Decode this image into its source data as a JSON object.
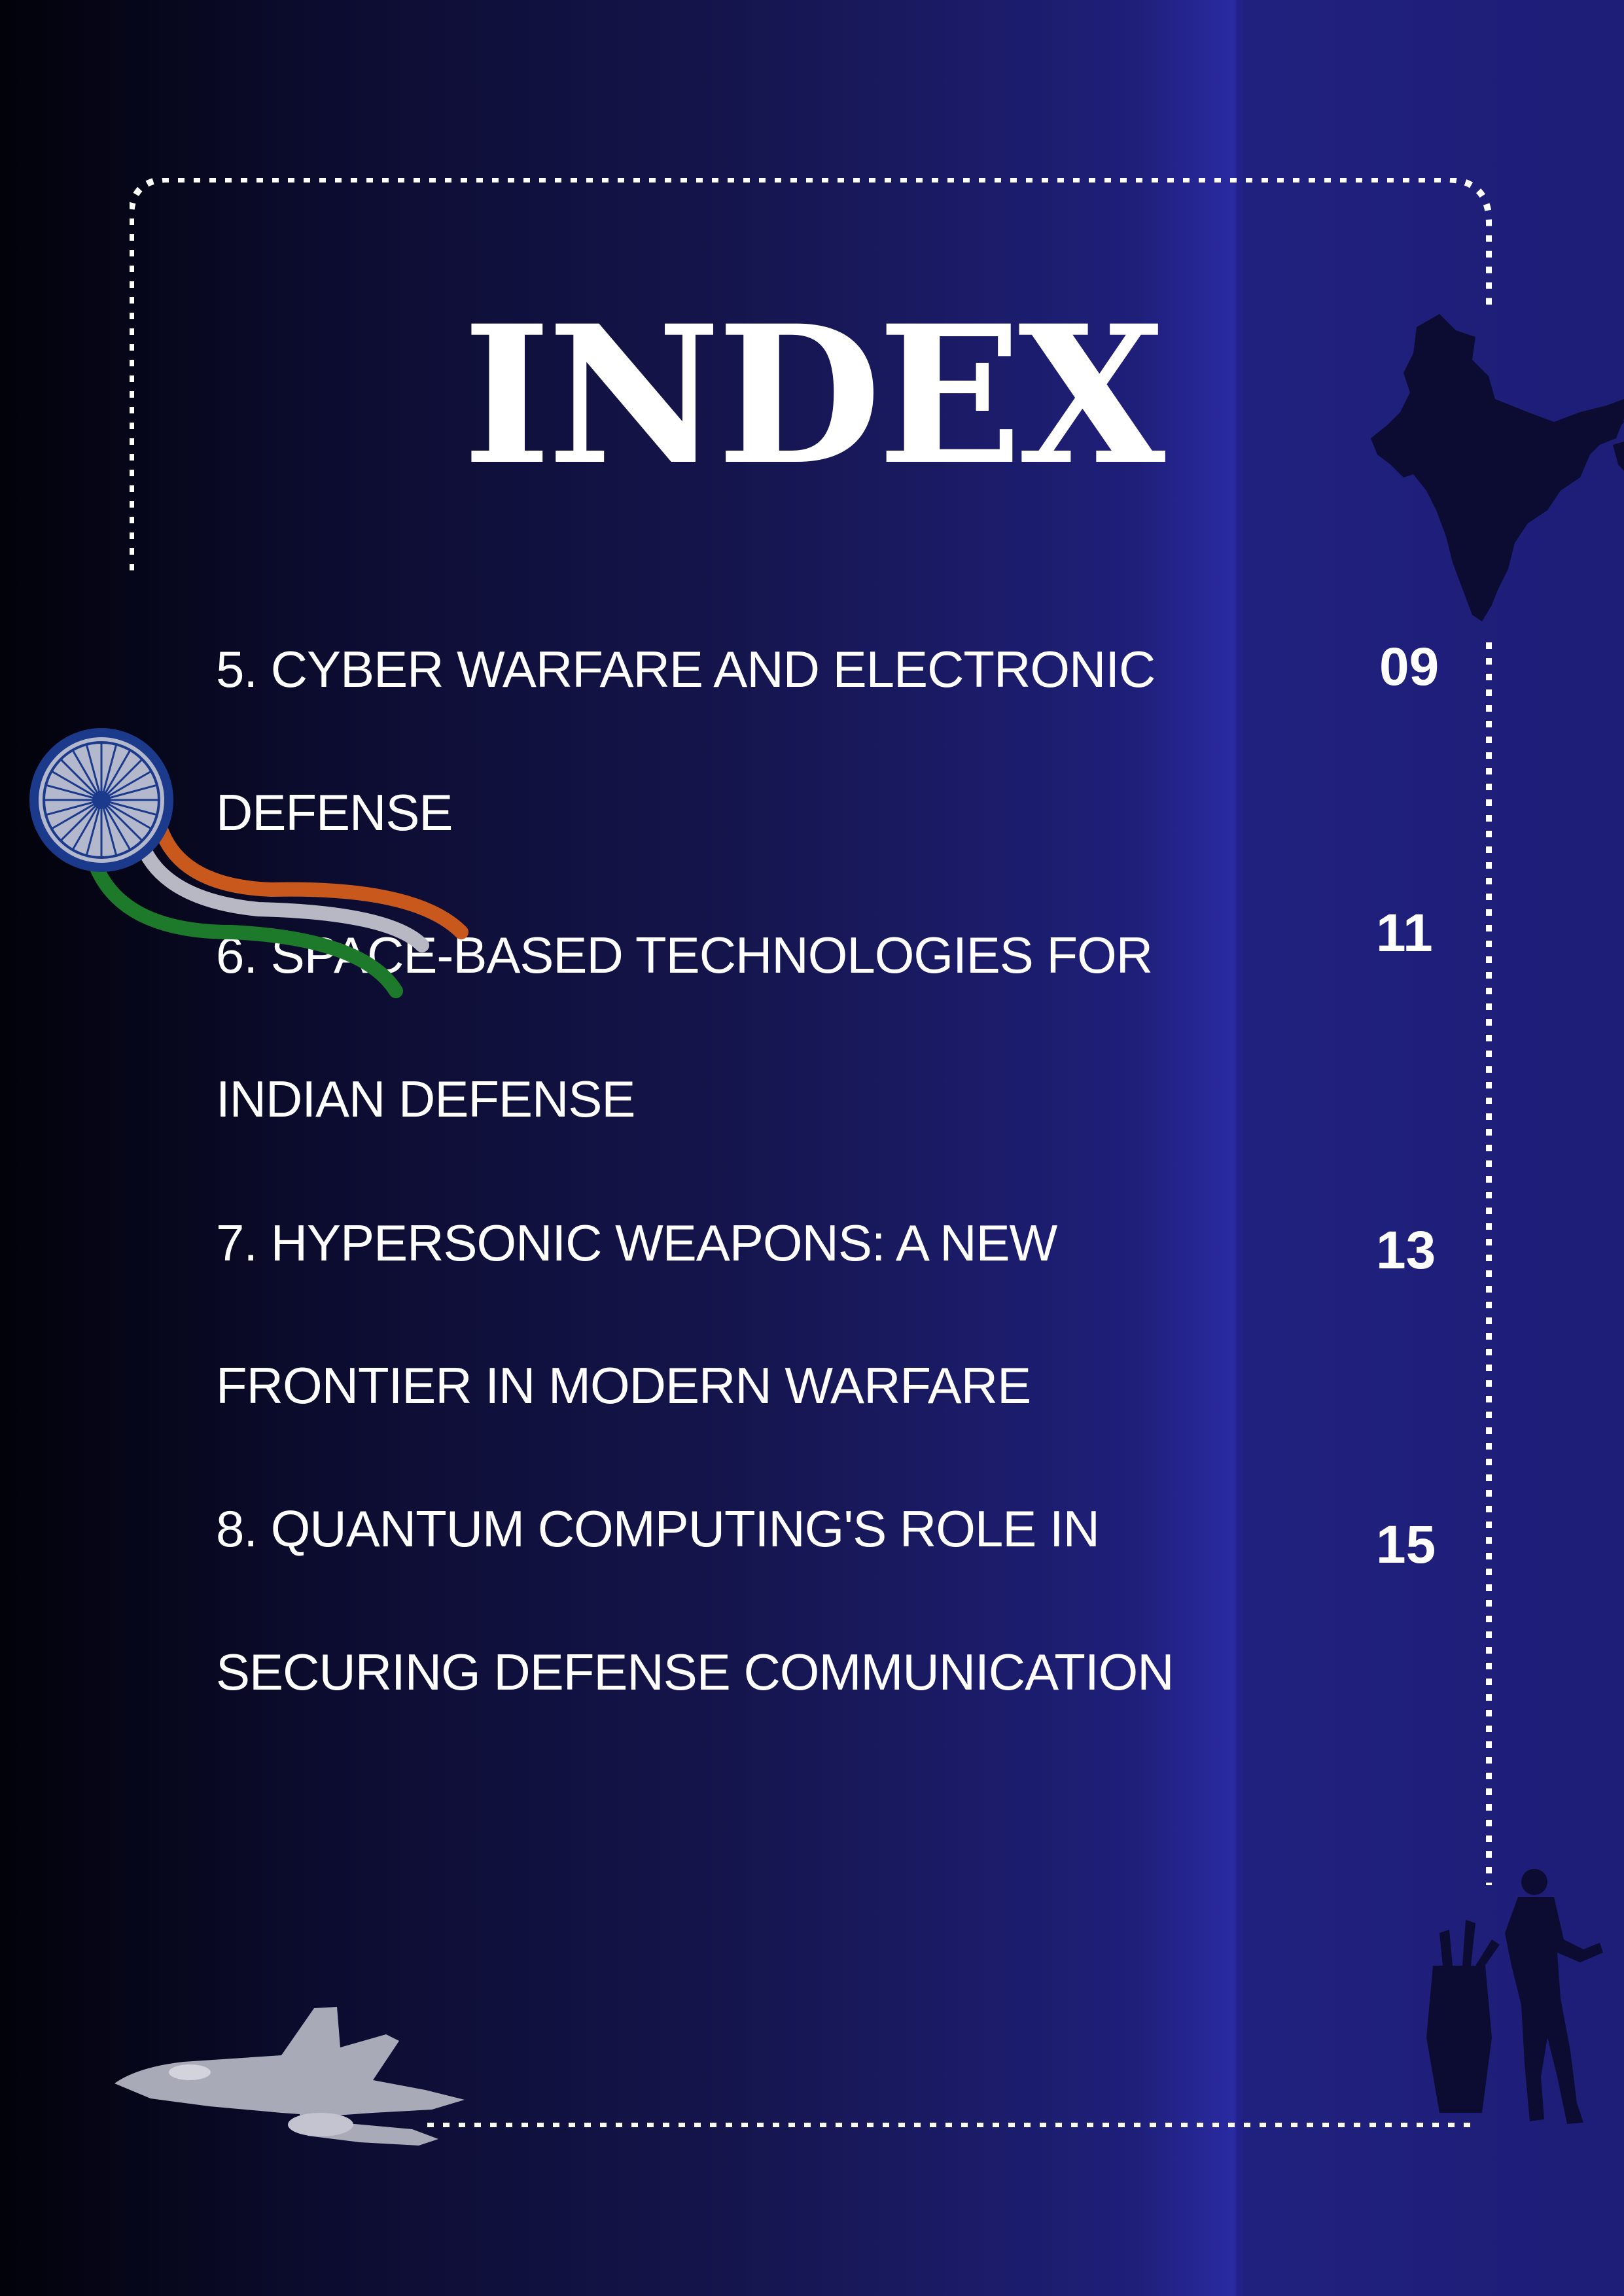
{
  "title": "INDEX",
  "entries": [
    {
      "line1": "5. CYBER WARFARE AND ELECTRONIC",
      "line2": "DEFENSE",
      "page": "09"
    },
    {
      "line1": "6. SPACE-BASED TECHNOLOGIES FOR",
      "line2": "INDIAN DEFENSE",
      "page": "11"
    },
    {
      "line1": "7. HYPERSONIC WEAPONS: A NEW",
      "line2": "FRONTIER IN MODERN WARFARE",
      "page": "13"
    },
    {
      "line1": "8. QUANTUM COMPUTING'S ROLE IN",
      "line2": "SECURING DEFENSE COMMUNICATION",
      "page": "15"
    }
  ],
  "colors": {
    "background_dark": "#02020a",
    "background_blue": "#2a2aa2",
    "text": "#ffffff",
    "silhouette": "#0c0c33",
    "saffron": "#c8581c",
    "green": "#1c7a2a",
    "chakra": "#1b3a8c"
  },
  "icons": [
    "ashoka-chakra-icon",
    "india-map-icon",
    "fighter-jet-icon",
    "soldier-silhouette-icon"
  ]
}
